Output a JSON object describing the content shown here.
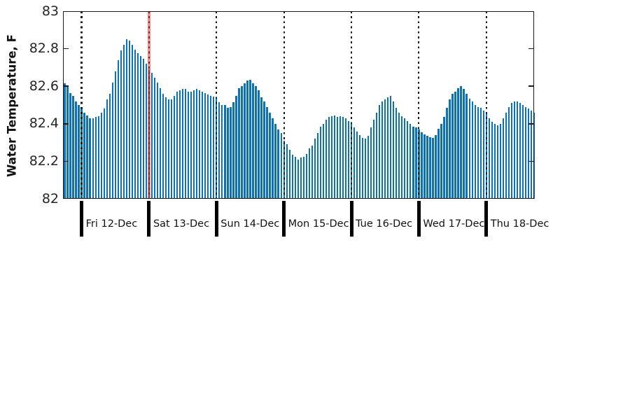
{
  "figure": {
    "background": "#ffffff",
    "axis_color": "#1a1a1a",
    "text_color": "#262626",
    "bar_color": "#0a72b5",
    "dotted_line_color": "#141414",
    "red_line_color": "rgba(228,55,55,0.55)"
  },
  "chart_data": {
    "type": "bar",
    "title": "",
    "xlabel": "",
    "ylabel": "Water Temperature, F",
    "ylim": [
      82,
      83
    ],
    "yticks": [
      {
        "value": 82.0,
        "label": "82"
      },
      {
        "value": 82.2,
        "label": "82.2"
      },
      {
        "value": 82.4,
        "label": "82.4"
      },
      {
        "value": 82.6,
        "label": "82.6"
      },
      {
        "value": 82.8,
        "label": "82.8"
      },
      {
        "value": 83.0,
        "label": "83"
      }
    ],
    "grid": "vertical dotted lines at each day boundary",
    "legend_position": "none",
    "x_sampling": "hourly readings, one bar per hour, 168 bars total",
    "day_boundaries": [
      {
        "index": 6,
        "label": "Fri 12-Dec"
      },
      {
        "index": 30,
        "label": "Sat 13-Dec"
      },
      {
        "index": 54,
        "label": "Sun 14-Dec"
      },
      {
        "index": 78,
        "label": "Mon 15-Dec"
      },
      {
        "index": 102,
        "label": "Tue 16-Dec"
      },
      {
        "index": 126,
        "label": "Wed 17-Dec"
      },
      {
        "index": 150,
        "label": "Thu 18-Dec"
      }
    ],
    "red_marker_line": {
      "index": 30,
      "note": "vertical red line at the Sat 13-Dec boundary"
    },
    "series": [
      {
        "name": "water_temperature_F",
        "values": [
          82.615,
          82.6,
          82.565,
          82.55,
          82.52,
          82.5,
          82.48,
          82.46,
          82.445,
          82.43,
          82.43,
          82.435,
          82.44,
          82.46,
          82.48,
          82.53,
          82.56,
          82.62,
          82.68,
          82.74,
          82.79,
          82.82,
          82.85,
          82.845,
          82.82,
          82.795,
          82.775,
          82.76,
          82.745,
          82.72,
          82.69,
          82.67,
          82.645,
          82.62,
          82.59,
          82.56,
          82.54,
          82.53,
          82.53,
          82.55,
          82.57,
          82.58,
          82.585,
          82.585,
          82.57,
          82.57,
          82.58,
          82.585,
          82.58,
          82.57,
          82.565,
          82.555,
          82.55,
          82.545,
          82.535,
          82.515,
          82.5,
          82.5,
          82.485,
          82.49,
          82.515,
          82.55,
          82.59,
          82.6,
          82.615,
          82.63,
          82.635,
          82.615,
          82.6,
          82.58,
          82.54,
          82.52,
          82.49,
          82.46,
          82.43,
          82.4,
          82.37,
          82.35,
          82.31,
          82.29,
          82.26,
          82.235,
          82.225,
          82.21,
          82.22,
          82.225,
          82.24,
          82.27,
          82.285,
          82.32,
          82.35,
          82.385,
          82.4,
          82.42,
          82.435,
          82.44,
          82.445,
          82.435,
          82.44,
          82.435,
          82.43,
          82.415,
          82.4,
          82.38,
          82.36,
          82.34,
          82.325,
          82.32,
          82.335,
          82.38,
          82.42,
          82.46,
          82.5,
          82.52,
          82.53,
          82.54,
          82.55,
          82.52,
          82.485,
          82.46,
          82.44,
          82.43,
          82.415,
          82.4,
          82.385,
          82.38,
          82.37,
          82.355,
          82.345,
          82.335,
          82.33,
          82.325,
          82.34,
          82.375,
          82.4,
          82.435,
          82.485,
          82.53,
          82.56,
          82.57,
          82.59,
          82.6,
          82.585,
          82.56,
          82.535,
          82.52,
          82.5,
          82.49,
          82.485,
          82.47,
          82.45,
          82.43,
          82.41,
          82.4,
          82.39,
          82.4,
          82.43,
          82.46,
          82.49,
          82.51,
          82.52,
          82.52,
          82.51,
          82.5,
          82.49,
          82.48,
          82.47,
          82.46
        ]
      }
    ]
  }
}
